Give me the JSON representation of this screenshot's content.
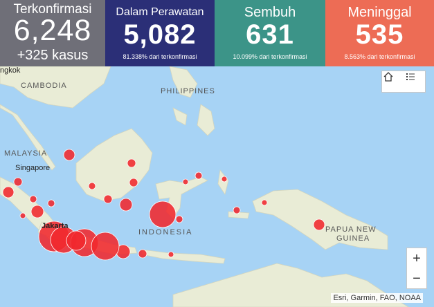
{
  "stats": [
    {
      "label": "Terkonfirmasi",
      "value": "6,248",
      "sub": "+325 kasus",
      "color": "#6f6f78"
    },
    {
      "label": "Dalam Perawatan",
      "value": "5,082",
      "sub": "81.338% dari terkonfirmasi",
      "color": "#2b2f77"
    },
    {
      "label": "Sembuh",
      "value": "631",
      "sub": "10.099% dari terkonfirmasi",
      "color": "#3c9488"
    },
    {
      "label": "Meninggal",
      "value": "535",
      "sub": "8.563% dari terkonfirmasi",
      "color": "#ed6c55"
    }
  ],
  "map": {
    "labels": {
      "bangkok": "ngkok",
      "cambodia": "CAMBODIA",
      "philippines": "PHILIPPINES",
      "malaysia": "MALAYSIA",
      "singapore": "Singapore",
      "jakarta": "Jakarta",
      "indonesia": "INDONESIA",
      "png1": "PAPUA NEW",
      "png2": "GUINEA"
    },
    "controls": {
      "home": "home-icon",
      "legend": "list-icon",
      "zoom_in": "+",
      "zoom_out": "−"
    },
    "attribution": "Esri, Garmin, FAO, NOAA",
    "marker_color": "#f0282d",
    "water_color": "#a7d3f5",
    "land_color": "#e9ecd6"
  }
}
